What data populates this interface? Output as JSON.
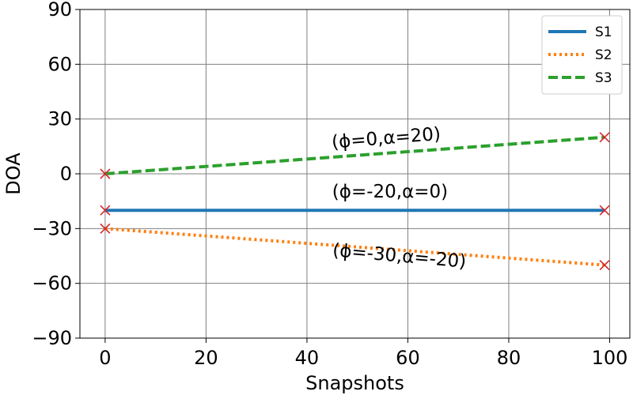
{
  "chart_data": {
    "type": "line",
    "xlabel": "Snapshots",
    "ylabel": "DOA",
    "xlim": [
      -5,
      104
    ],
    "ylim": [
      -90,
      90
    ],
    "xticks": [
      0,
      20,
      40,
      60,
      80,
      100
    ],
    "yticks": [
      -90,
      -60,
      -30,
      0,
      30,
      60,
      90
    ],
    "xtick_labels": [
      "0",
      "20",
      "40",
      "60",
      "80",
      "100"
    ],
    "ytick_labels": [
      "−90",
      "−60",
      "−30",
      "0",
      "30",
      "60",
      "90"
    ],
    "grid": true,
    "legend_position": "top-right",
    "series": [
      {
        "name": "S1",
        "x": [
          0,
          99
        ],
        "y": [
          -20,
          -20
        ],
        "color": "#1f77b4",
        "style": "solid"
      },
      {
        "name": "S2",
        "x": [
          0,
          99
        ],
        "y": [
          -30,
          -50
        ],
        "color": "#ff7f0e",
        "style": "dotted"
      },
      {
        "name": "S3",
        "x": [
          0,
          99
        ],
        "y": [
          0,
          20
        ],
        "color": "#2ca02c",
        "style": "dashed"
      }
    ],
    "markers": {
      "symbol": "x",
      "color": "#d62728",
      "points": [
        [
          0,
          0
        ],
        [
          0,
          -20
        ],
        [
          0,
          -30
        ],
        [
          99,
          20
        ],
        [
          99,
          -20
        ],
        [
          99,
          -50
        ]
      ]
    },
    "annotations": [
      {
        "text": "(ϕ=0,α=20)",
        "x": 45,
        "y": 14,
        "rotation": -4.5
      },
      {
        "text": "(ϕ=-20,α=0)",
        "x": 45,
        "y": -13,
        "rotation": 0
      },
      {
        "text": "(ϕ=-30,α=-20)",
        "x": 45,
        "y": -45,
        "rotation": 5
      }
    ]
  }
}
